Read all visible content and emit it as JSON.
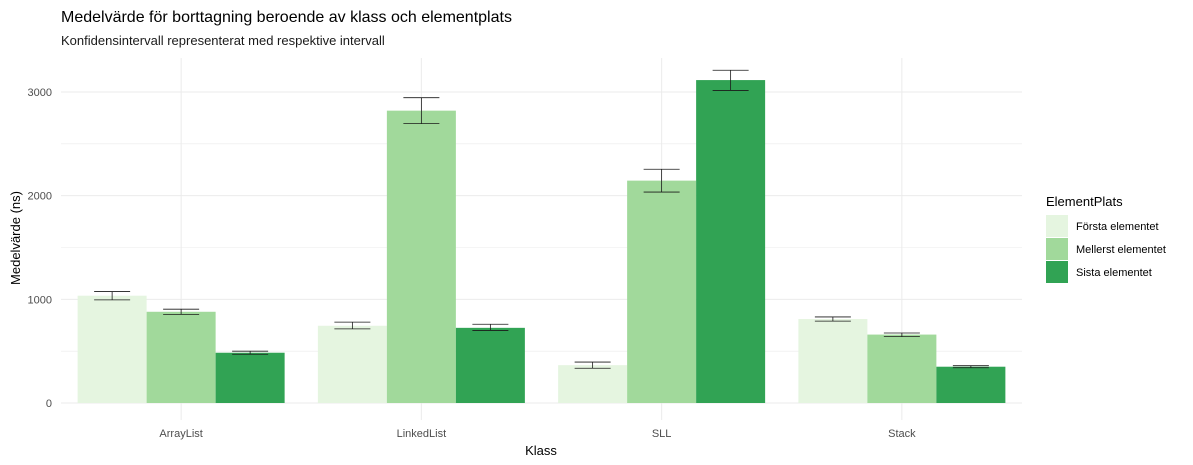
{
  "chart_data": {
    "type": "bar",
    "title": "Medelvärde för borttagning beroende av klass och elementplats",
    "subtitle": "Konfidensintervall representerat med respektive intervall",
    "xlabel": "Klass",
    "ylabel": "Medelvärde (ns)",
    "ylim": [
      0,
      3350
    ],
    "yticks": [
      0,
      1000,
      2000,
      3000
    ],
    "categories": [
      "ArrayList",
      "LinkedList",
      "SLL",
      "Stack"
    ],
    "legend_title": "ElementPlats",
    "legend_position": "right",
    "series": [
      {
        "name": "Första elementet",
        "color": "#e5f5e0",
        "values": [
          1035,
          745,
          365,
          810
        ],
        "ci_low": [
          995,
          715,
          335,
          790
        ],
        "ci_high": [
          1075,
          780,
          395,
          830
        ]
      },
      {
        "name": "Mellerst elementet",
        "color": "#a1d99b",
        "values": [
          880,
          2820,
          2145,
          660
        ],
        "ci_low": [
          855,
          2695,
          2035,
          640
        ],
        "ci_high": [
          905,
          2945,
          2255,
          675
        ]
      },
      {
        "name": "Sista elementet",
        "color": "#31a354",
        "values": [
          485,
          725,
          3115,
          350
        ],
        "ci_low": [
          470,
          700,
          3015,
          340
        ],
        "ci_high": [
          500,
          760,
          3210,
          360
        ]
      }
    ]
  }
}
